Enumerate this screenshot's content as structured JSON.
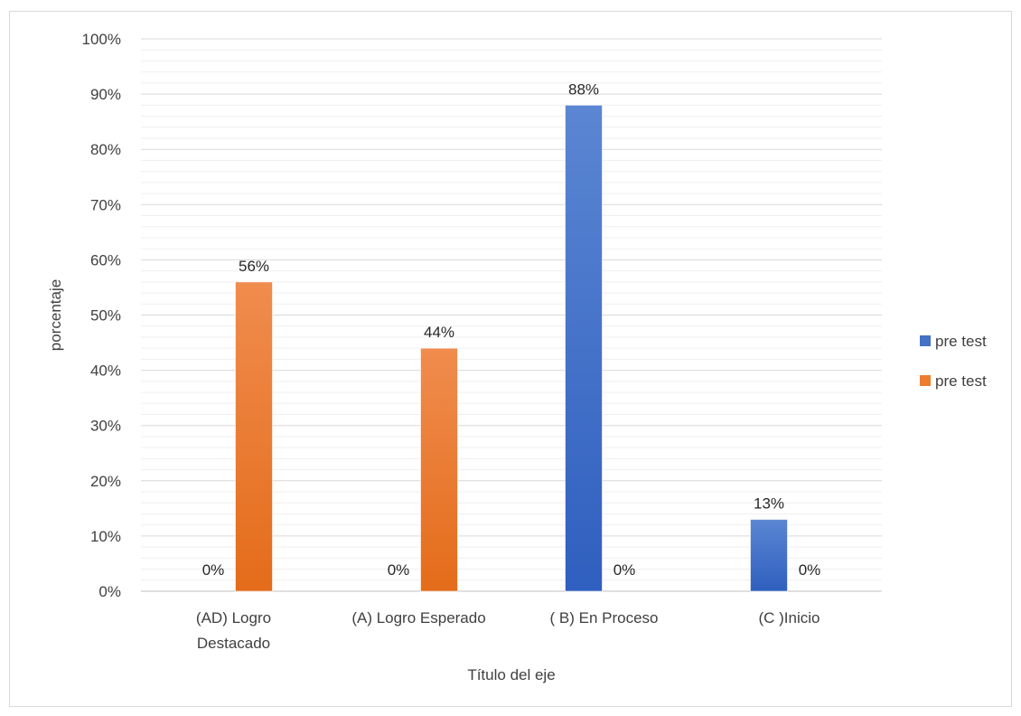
{
  "chart_data": {
    "type": "bar",
    "title": "",
    "xlabel": "Título del eje",
    "ylabel": "porcentaje",
    "ylim": [
      0,
      100
    ],
    "y_ticks": [
      "0%",
      "10%",
      "20%",
      "30%",
      "40%",
      "50%",
      "60%",
      "70%",
      "80%",
      "90%",
      "100%"
    ],
    "categories": [
      [
        "(AD)  Logro",
        "Destacado"
      ],
      [
        "(A) Logro Esperado"
      ],
      [
        "( B) En Proceso"
      ],
      [
        "(C )Inicio"
      ]
    ],
    "series": [
      {
        "name": "pre test",
        "color": "#4472c4",
        "values": [
          0,
          0,
          88,
          13
        ],
        "labels": [
          "0%",
          "0%",
          "88%",
          "13%"
        ]
      },
      {
        "name": "pre test",
        "color": "#ed7d31",
        "values": [
          56,
          44,
          0,
          0
        ],
        "labels": [
          "56%",
          "44%",
          "0%",
          "0%"
        ]
      }
    ],
    "grid": true,
    "legend_position": "right"
  }
}
